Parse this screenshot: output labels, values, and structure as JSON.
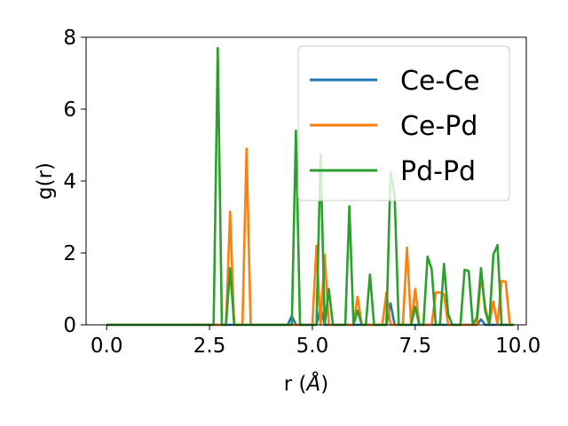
{
  "chart_data": {
    "type": "line",
    "xlabel": "r (",
    "xlabel_unit": "Å",
    "xlabel_close": ")",
    "ylabel": "g(r)",
    "xlim": [
      -0.5,
      10.2
    ],
    "ylim": [
      0,
      8.0
    ],
    "xticks": [
      0.0,
      2.5,
      5.0,
      7.5,
      10.0
    ],
    "xtick_labels": [
      "0.0",
      "2.5",
      "5.0",
      "7.5",
      "10.0"
    ],
    "yticks": [
      0,
      2,
      4,
      6,
      8
    ],
    "ytick_labels": [
      "0",
      "2",
      "4",
      "6",
      "8"
    ],
    "grid": false,
    "legend_position": "upper-right",
    "series": [
      {
        "name": "Ce-Ce",
        "color": "#1f77b4",
        "x": [
          0.0,
          4.4,
          4.5,
          4.6,
          5.1,
          5.2,
          5.3,
          6.8,
          6.9,
          7.0,
          9.0,
          9.1,
          9.2,
          9.9
        ],
        "y": [
          0,
          0,
          0.25,
          0,
          0,
          0.5,
          0,
          0,
          0.6,
          0,
          0,
          0.15,
          0,
          0
        ]
      },
      {
        "name": "Ce-Pd",
        "color": "#ff7f0e",
        "x": [
          0.0,
          2.9,
          3.0,
          3.1,
          3.3,
          3.4,
          3.5,
          5.0,
          5.1,
          5.2,
          5.3,
          5.4,
          5.5,
          6.0,
          6.1,
          6.2,
          6.7,
          6.8,
          6.9,
          7.2,
          7.3,
          7.4,
          7.5,
          7.6,
          7.9,
          8.0,
          8.1,
          8.2,
          8.3,
          8.4,
          9.0,
          9.1,
          9.2,
          9.3,
          9.4,
          9.5,
          9.6,
          9.7,
          9.8,
          9.9
        ],
        "y": [
          0,
          0,
          3.15,
          0,
          0,
          4.9,
          0,
          0,
          2.2,
          0,
          1.95,
          0,
          0,
          0,
          0.78,
          0,
          0,
          0.9,
          0,
          0,
          2.15,
          0,
          1.0,
          0,
          0,
          0.9,
          0.9,
          0.85,
          0,
          0,
          0,
          1.38,
          0.5,
          0,
          0.65,
          0,
          1.22,
          1.2,
          0,
          0
        ]
      },
      {
        "name": "Pd-Pd",
        "color": "#2ca02c",
        "x": [
          0.0,
          2.5,
          2.6,
          2.7,
          2.8,
          2.9,
          3.0,
          3.1,
          4.4,
          4.5,
          4.6,
          4.7,
          5.1,
          5.2,
          5.3,
          5.4,
          5.5,
          5.8,
          5.9,
          6.0,
          6.1,
          6.2,
          6.3,
          6.4,
          6.5,
          6.8,
          6.9,
          7.0,
          7.1,
          7.4,
          7.5,
          7.6,
          7.7,
          7.8,
          7.9,
          8.0,
          8.1,
          8.2,
          8.3,
          8.4,
          8.6,
          8.7,
          8.8,
          8.9,
          9.0,
          9.1,
          9.2,
          9.3,
          9.4,
          9.5,
          9.6,
          9.9
        ],
        "y": [
          0,
          0,
          0,
          7.7,
          0,
          0,
          1.57,
          0,
          0,
          0,
          5.4,
          0,
          0,
          4.75,
          0,
          1.0,
          0,
          0,
          3.3,
          0,
          0.4,
          0,
          0,
          1.4,
          0,
          0,
          4.25,
          3.6,
          0,
          0,
          0.5,
          0,
          0,
          1.9,
          1.55,
          0,
          0,
          1.7,
          0.3,
          0,
          0,
          1.53,
          1.5,
          0,
          0.2,
          1.58,
          0.4,
          0,
          1.95,
          2.22,
          0,
          0
        ]
      }
    ]
  }
}
